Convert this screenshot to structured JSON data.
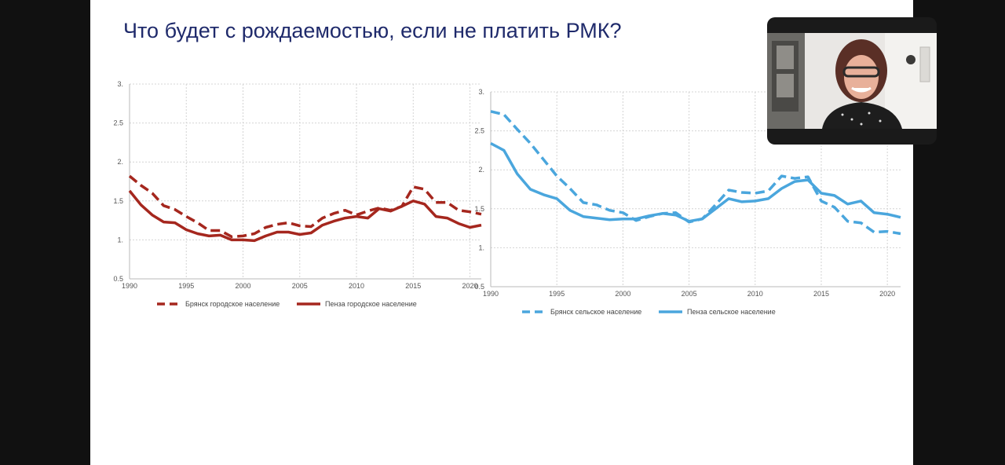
{
  "slide": {
    "title": "Что будет с рождаемостью, если не платить РМК?"
  },
  "colors": {
    "urban": "#a5271e",
    "rural": "#4aa6dd",
    "title": "#1f2a6b"
  },
  "chart_data": [
    {
      "type": "line",
      "title": "",
      "xlabel": "",
      "ylabel": "",
      "xlim": [
        1990,
        2021
      ],
      "ylim": [
        0.5,
        3
      ],
      "grid": true,
      "legend_position": "bottom",
      "x_ticks": [
        "1990",
        "1995",
        "2000",
        "2005",
        "2010",
        "2015",
        "2020"
      ],
      "x_tick_values": [
        1990,
        1995,
        2000,
        2005,
        2010,
        2015,
        2020
      ],
      "y_ticks": [
        "0.5",
        "1.",
        "1.5",
        "2.",
        "2.5",
        "3."
      ],
      "y_tick_values": [
        0.5,
        1,
        1.5,
        2,
        2.5,
        3
      ],
      "x": [
        1990,
        1991,
        1992,
        1993,
        1994,
        1995,
        1996,
        1997,
        1998,
        1999,
        2000,
        2001,
        2002,
        2003,
        2004,
        2005,
        2006,
        2007,
        2008,
        2009,
        2010,
        2011,
        2012,
        2013,
        2014,
        2015,
        2016,
        2017,
        2018,
        2019,
        2020,
        2021
      ],
      "series": [
        {
          "name": "Брянск  городское население",
          "dashed": true,
          "color": "#a5271e",
          "values": [
            1.82,
            1.7,
            1.6,
            1.44,
            1.39,
            1.3,
            1.22,
            1.12,
            1.12,
            1.04,
            1.05,
            1.08,
            1.16,
            1.2,
            1.22,
            1.18,
            1.17,
            1.28,
            1.34,
            1.38,
            1.32,
            1.37,
            1.41,
            1.38,
            1.43,
            1.68,
            1.65,
            1.48,
            1.48,
            1.38,
            1.36,
            1.33
          ]
        },
        {
          "name": "Пенза городское население",
          "dashed": false,
          "color": "#a5271e",
          "values": [
            1.63,
            1.45,
            1.32,
            1.23,
            1.22,
            1.13,
            1.08,
            1.05,
            1.06,
            1.0,
            1.0,
            0.99,
            1.05,
            1.1,
            1.1,
            1.07,
            1.09,
            1.19,
            1.24,
            1.28,
            1.3,
            1.28,
            1.4,
            1.37,
            1.43,
            1.5,
            1.46,
            1.3,
            1.28,
            1.21,
            1.16,
            1.19
          ]
        }
      ]
    },
    {
      "type": "line",
      "title": "",
      "xlabel": "",
      "ylabel": "",
      "xlim": [
        1990,
        2021
      ],
      "ylim": [
        0.5,
        3
      ],
      "grid": true,
      "legend_position": "bottom",
      "x_ticks": [
        "1990",
        "1995",
        "2000",
        "2005",
        "2010",
        "2015",
        "2020"
      ],
      "x_tick_values": [
        1990,
        1995,
        2000,
        2005,
        2010,
        2015,
        2020
      ],
      "y_ticks": [
        "0.5",
        "1.",
        "1.5",
        "2.",
        "2.5",
        "3."
      ],
      "y_tick_values": [
        0.5,
        1,
        1.5,
        2,
        2.5,
        3
      ],
      "x": [
        1990,
        1991,
        1992,
        1993,
        1994,
        1995,
        1996,
        1997,
        1998,
        1999,
        2000,
        2001,
        2002,
        2003,
        2004,
        2005,
        2006,
        2007,
        2008,
        2009,
        2010,
        2011,
        2012,
        2013,
        2014,
        2015,
        2016,
        2017,
        2018,
        2019,
        2020,
        2021
      ],
      "series": [
        {
          "name": "Брянск  сельское население",
          "dashed": true,
          "color": "#4aa6dd",
          "values": [
            2.75,
            2.71,
            2.52,
            2.34,
            2.13,
            1.92,
            1.76,
            1.58,
            1.55,
            1.48,
            1.45,
            1.35,
            1.4,
            1.44,
            1.45,
            1.33,
            1.37,
            1.55,
            1.74,
            1.71,
            1.7,
            1.73,
            1.92,
            1.89,
            1.91,
            1.6,
            1.52,
            1.34,
            1.32,
            1.2,
            1.21,
            1.18
          ]
        },
        {
          "name": "Пенза сельское население",
          "dashed": false,
          "color": "#4aa6dd",
          "values": [
            2.34,
            2.25,
            1.95,
            1.75,
            1.68,
            1.63,
            1.48,
            1.4,
            1.38,
            1.36,
            1.37,
            1.37,
            1.41,
            1.44,
            1.42,
            1.34,
            1.37,
            1.5,
            1.63,
            1.59,
            1.6,
            1.63,
            1.76,
            1.85,
            1.87,
            1.7,
            1.67,
            1.56,
            1.6,
            1.45,
            1.43,
            1.39
          ]
        }
      ]
    }
  ]
}
